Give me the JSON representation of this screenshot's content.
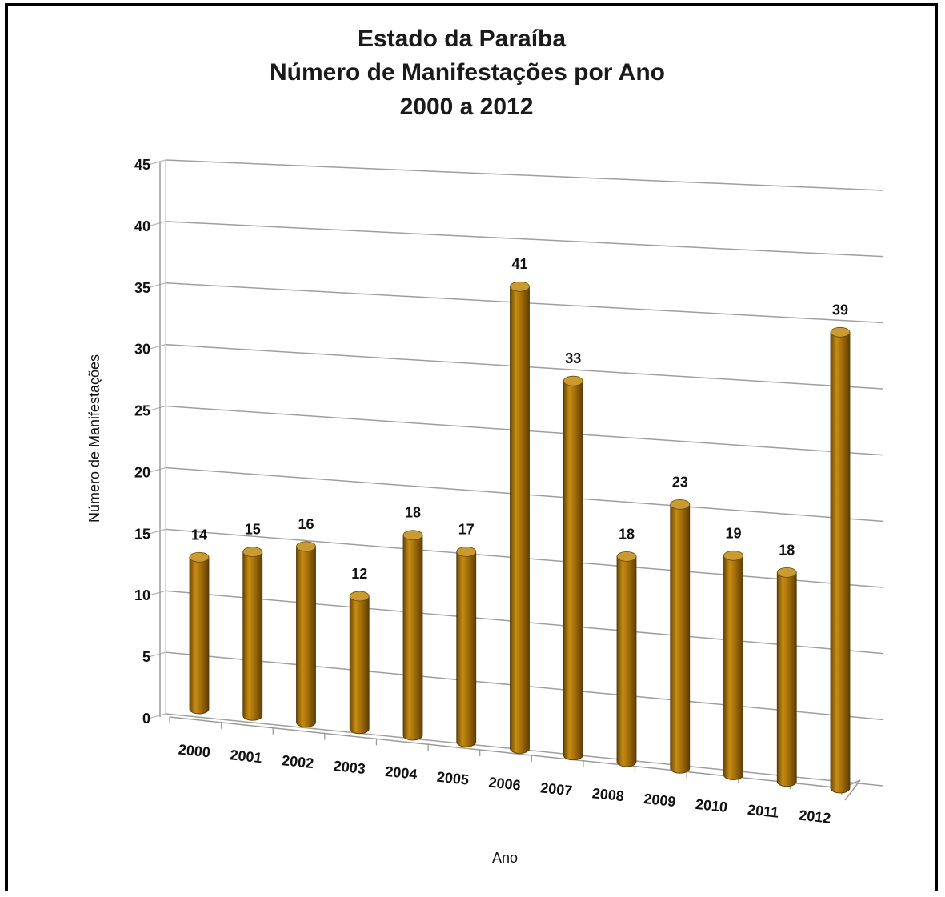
{
  "chart_data": {
    "type": "bar",
    "title_lines": [
      "Estado da Paraíba",
      "Número de Manifestações por Ano",
      "2000 a 2012"
    ],
    "xlabel": "Ano",
    "ylabel": "Número de Manifestações",
    "ylim": [
      0,
      45
    ],
    "yticks": [
      "0",
      "5",
      "10",
      "15",
      "20",
      "25",
      "30",
      "35",
      "40",
      "45"
    ],
    "categories": [
      "2000",
      "2001",
      "2002",
      "2003",
      "2004",
      "2005",
      "2006",
      "2007",
      "2008",
      "2009",
      "2010",
      "2011",
      "2012"
    ],
    "values": [
      14,
      15,
      16,
      12,
      18,
      17,
      41,
      33,
      18,
      23,
      19,
      18,
      39
    ],
    "bar_style": "3d-cylinder",
    "bar_color": "#a87208",
    "grid": true,
    "legend": "none"
  }
}
